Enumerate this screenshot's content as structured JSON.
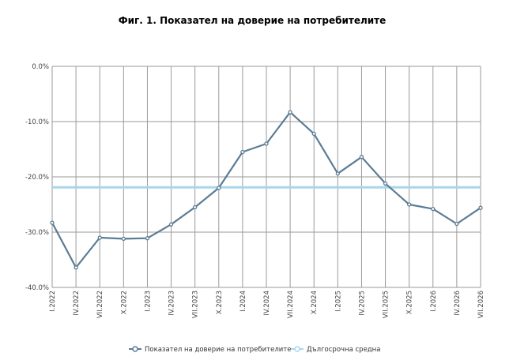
{
  "chart_data": {
    "type": "line",
    "title": "Фиг. 1. Показател на доверие на потребителите",
    "categories": [
      "I.2022",
      "IV.2022",
      "VII.2022",
      "X.2022",
      "I.2023",
      "IV.2023",
      "VII.2023",
      "X.2023",
      "I.2024",
      "IV.2024",
      "VII.2024",
      "X.2024",
      "I.2025",
      "IV.2025",
      "VII.2025",
      "X.2025",
      "I.2026",
      "IV.2026",
      "VII.2026"
    ],
    "ylim": [
      -40,
      0
    ],
    "yticks": [
      0,
      -10,
      -20,
      -30,
      -40
    ],
    "ytick_labels": [
      "0.0%",
      "-10.0%",
      "-20.0%",
      "-30.0%",
      "-40.0%"
    ],
    "grid": true,
    "legend_position": "bottom",
    "series": [
      {
        "name": "Показател на доверие на потребителите",
        "color": "#5b7c95",
        "values": [
          -28.3,
          -36.4,
          -31.0,
          -31.2,
          -31.1,
          -28.6,
          -25.5,
          -22.0,
          -15.5,
          -14.0,
          -8.3,
          -12.2,
          -19.4,
          -16.4,
          -21.2,
          -25.0,
          -25.8,
          -28.5,
          -25.6
        ]
      },
      {
        "name": "Дългосрочна средна",
        "color": "#a9d6ea",
        "values": [
          -21.9,
          -21.9,
          -21.9,
          -21.9,
          -21.9,
          -21.9,
          -21.9,
          -21.9,
          -21.9,
          -21.9,
          -21.9,
          -21.9,
          -21.9,
          -21.9,
          -21.9,
          -21.9,
          -21.9,
          -21.9,
          -21.9
        ]
      }
    ]
  }
}
